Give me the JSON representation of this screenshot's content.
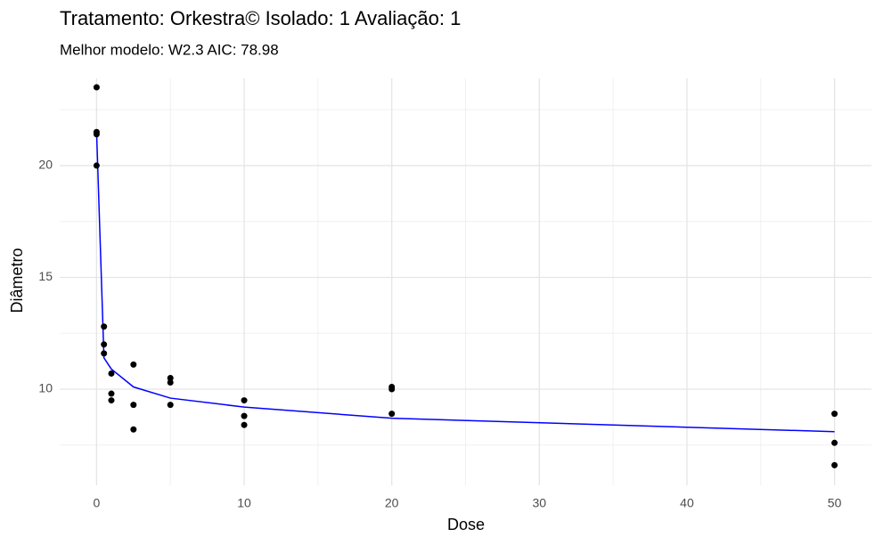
{
  "chart_data": {
    "type": "scatter",
    "title": "Tratamento: Orkestra© Isolado: 1 Avaliação: 1",
    "subtitle": "Melhor modelo: W2.3 AIC: 78.98",
    "x_label": "Dose",
    "y_label": "Diâmetro",
    "xlim": [
      -2.5,
      52.5
    ],
    "ylim": [
      5.7,
      23.9
    ],
    "xticks": [
      0,
      10,
      20,
      30,
      40,
      50
    ],
    "yticks": [
      10,
      15,
      20
    ],
    "xminor": [
      5,
      15,
      25,
      35,
      45
    ],
    "yminor": [
      7.5,
      12.5,
      17.5,
      22.5
    ],
    "grid": true,
    "points": {
      "color": "#000000",
      "x": [
        0,
        0,
        0,
        0,
        0.5,
        0.5,
        0.5,
        1,
        1,
        1,
        2.5,
        2.5,
        2.5,
        5,
        5,
        5,
        10,
        10,
        10,
        20,
        20,
        20,
        50,
        50,
        50
      ],
      "y": [
        23.5,
        21.5,
        21.4,
        20.0,
        12.8,
        12.0,
        11.6,
        10.7,
        9.8,
        9.5,
        11.1,
        9.3,
        8.2,
        10.5,
        10.3,
        9.3,
        9.5,
        8.8,
        8.4,
        10.1,
        10.0,
        8.9,
        8.9,
        7.6,
        6.6
      ]
    },
    "fit": {
      "color": "#0000ff",
      "x": [
        0,
        0.5,
        1,
        2.5,
        5,
        10,
        20,
        50
      ],
      "y": [
        21.5,
        11.4,
        10.9,
        10.1,
        9.6,
        9.2,
        8.7,
        8.1
      ]
    }
  }
}
